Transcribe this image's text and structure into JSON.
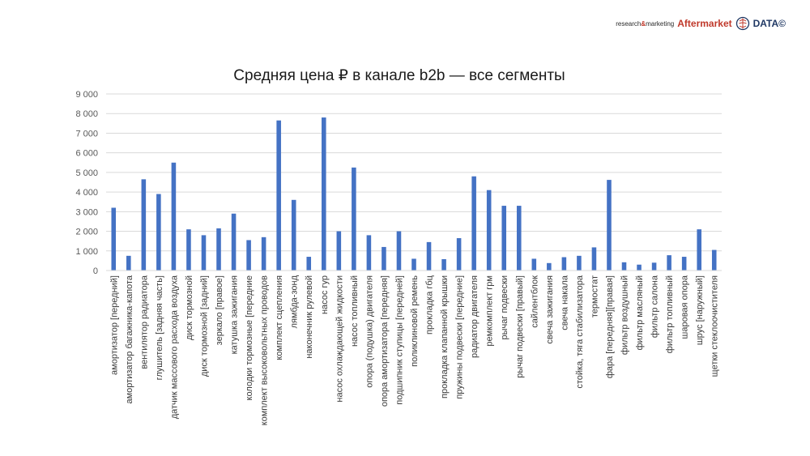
{
  "brand": {
    "text_prefix": "research",
    "text_amp": "&",
    "text_suffix": "marketing",
    "name_aftermarket": "Aftermarket",
    "name_data": "DATA©",
    "logo_icon": "brain-icon",
    "color_red": "#c0392b",
    "color_blue": "#1f3864"
  },
  "chart_data": {
    "type": "bar",
    "title": "Средняя цена ₽ в канале b2b — все сегменты",
    "xlabel": "",
    "ylabel": "",
    "ylim": [
      0,
      9000
    ],
    "yticks": [
      0,
      1000,
      2000,
      3000,
      4000,
      5000,
      6000,
      7000,
      8000,
      9000
    ],
    "ytick_labels": [
      "0",
      "1 000",
      "2 000",
      "3 000",
      "4 000",
      "5 000",
      "6 000",
      "7 000",
      "8 000",
      "9 000"
    ],
    "grid": true,
    "legend": "none",
    "bar_color": "#4472c4",
    "categories": [
      "амортизатор [передний]",
      "амортизатор багажника-капота",
      "вентилятор радиатора",
      "глушитель [задняя часть]",
      "датчик массового расхода воздуха",
      "диск тормозной",
      "диск тормозной [задний]",
      "зеркало [правое]",
      "катушка зажигания",
      "колодки тормозные [передние",
      "комплект высоковольтных проводов",
      "комплект сцепления",
      "лямбда-зонд",
      "наконечник рулевой",
      "насос гур",
      "насос охлаждающей жидкости",
      "насос топливный",
      "опора (подушка) двигателя",
      "опора амортизатора [передняя]",
      "подшипник ступицы [передней]",
      "поликлиновой ремень",
      "прокладка гбц",
      "прокладка клапанной крышки",
      "пружины подвески [передние]",
      "радиатор двигателя",
      "ремкомплект грм",
      "рычаг подвески",
      "рычаг подвески [правый]",
      "сайлентблок",
      "свеча зажигания",
      "свеча накала",
      "стойка, тяга стабилизатора",
      "термостат",
      "фара [передняя][правая]",
      "фильтр воздушный",
      "фильтр масляный",
      "фильтр салона",
      "фильтр топливный",
      "шаровая опора",
      "шрус [наружный]",
      "щетки стеклоочистителя"
    ],
    "values": [
      3200,
      750,
      4650,
      3900,
      5500,
      2100,
      1800,
      2150,
      2900,
      1550,
      1700,
      7650,
      3600,
      700,
      7800,
      2000,
      5250,
      1800,
      1200,
      2000,
      600,
      1450,
      580,
      1650,
      4800,
      4100,
      3300,
      3300,
      600,
      380,
      680,
      750,
      1180,
      4620,
      420,
      300,
      400,
      780,
      700,
      2100,
      1050
    ]
  }
}
